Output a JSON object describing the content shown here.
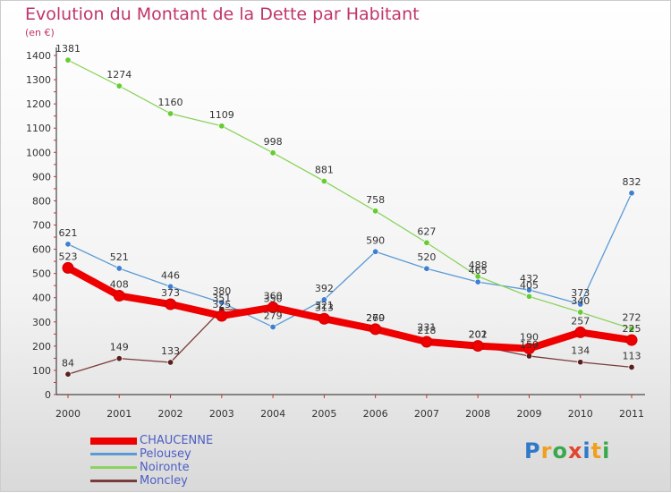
{
  "header": {
    "title": "Evolution du Montant de la Dette par Habitant",
    "subtitle": "(en €)"
  },
  "logo_text": "Proxiti",
  "chart_data": {
    "type": "line",
    "title": "Evolution du Montant de la Dette par Habitant",
    "subtitle": "(en €)",
    "xlabel": "",
    "ylabel": "",
    "x": [
      "2000",
      "2001",
      "2002",
      "2003",
      "2004",
      "2005",
      "2006",
      "2007",
      "2008",
      "2009",
      "2010",
      "2011"
    ],
    "ylim": [
      0,
      1400
    ],
    "yticks": [
      0,
      100,
      200,
      300,
      400,
      500,
      600,
      700,
      800,
      900,
      1000,
      1100,
      1200,
      1300,
      1400
    ],
    "grid": false,
    "legend_position": "bottom-left",
    "series": [
      {
        "name": "CHAUCENNE",
        "color": "#ee0000",
        "point_color": "#ee0000",
        "values": [
          523,
          408,
          373,
          325,
          360,
          313,
          270,
          218,
          201,
          190,
          257,
          225
        ]
      },
      {
        "name": "Pelousey",
        "color": "#5b9bd5",
        "point_color": "#3f7fd0",
        "values": [
          621,
          521,
          446,
          380,
          279,
          392,
          590,
          520,
          465,
          432,
          373,
          832
        ]
      },
      {
        "name": "Noironte",
        "color": "#8cd35f",
        "point_color": "#66cc33",
        "values": [
          1381,
          1274,
          1160,
          1109,
          998,
          881,
          758,
          627,
          488,
          405,
          340,
          272
        ]
      },
      {
        "name": "Moncley",
        "color": "#7a3b3b",
        "point_color": "#5a1f1f",
        "values": [
          84,
          149,
          133,
          351,
          350,
          321,
          269,
          231,
          202,
          159,
          134,
          113
        ]
      }
    ]
  }
}
